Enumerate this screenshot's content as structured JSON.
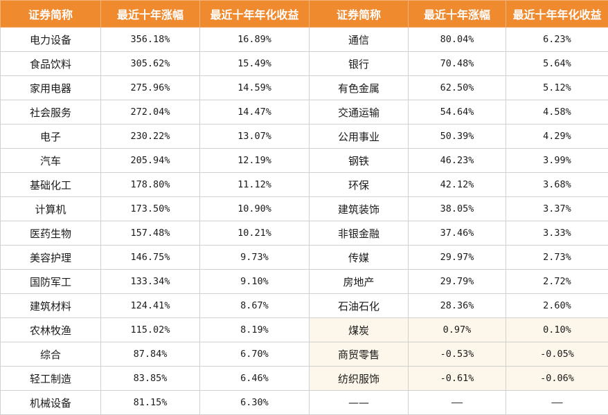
{
  "headers": [
    "证券简称",
    "最近十年涨幅",
    "最近十年年化收益",
    "证券简称",
    "最近十年涨幅",
    "最近十年年化收益"
  ],
  "colors": {
    "header_bg": "#ef8a2e",
    "header_text": "#ffffff",
    "highlight_bg": "#fdf6ea"
  },
  "rows": [
    {
      "left": {
        "name": "电力设备",
        "gain": "356.18%",
        "annual": "16.89%"
      },
      "right": {
        "name": "通信",
        "gain": "80.04%",
        "annual": "6.23%"
      }
    },
    {
      "left": {
        "name": "食品饮料",
        "gain": "305.62%",
        "annual": "15.49%"
      },
      "right": {
        "name": "银行",
        "gain": "70.48%",
        "annual": "5.64%"
      }
    },
    {
      "left": {
        "name": "家用电器",
        "gain": "275.96%",
        "annual": "14.59%"
      },
      "right": {
        "name": "有色金属",
        "gain": "62.50%",
        "annual": "5.12%"
      }
    },
    {
      "left": {
        "name": "社会服务",
        "gain": "272.04%",
        "annual": "14.47%"
      },
      "right": {
        "name": "交通运输",
        "gain": "54.64%",
        "annual": "4.58%"
      }
    },
    {
      "left": {
        "name": "电子",
        "gain": "230.22%",
        "annual": "13.07%"
      },
      "right": {
        "name": "公用事业",
        "gain": "50.39%",
        "annual": "4.29%"
      }
    },
    {
      "left": {
        "name": "汽车",
        "gain": "205.94%",
        "annual": "12.19%"
      },
      "right": {
        "name": "钢铁",
        "gain": "46.23%",
        "annual": "3.99%"
      }
    },
    {
      "left": {
        "name": "基础化工",
        "gain": "178.80%",
        "annual": "11.12%"
      },
      "right": {
        "name": "环保",
        "gain": "42.12%",
        "annual": "3.68%"
      }
    },
    {
      "left": {
        "name": "计算机",
        "gain": "173.50%",
        "annual": "10.90%"
      },
      "right": {
        "name": "建筑装饰",
        "gain": "38.05%",
        "annual": "3.37%"
      }
    },
    {
      "left": {
        "name": "医药生物",
        "gain": "157.48%",
        "annual": "10.21%"
      },
      "right": {
        "name": "非银金融",
        "gain": "37.46%",
        "annual": "3.33%"
      }
    },
    {
      "left": {
        "name": "美容护理",
        "gain": "146.75%",
        "annual": "9.73%"
      },
      "right": {
        "name": "传媒",
        "gain": "29.97%",
        "annual": "2.73%"
      }
    },
    {
      "left": {
        "name": "国防军工",
        "gain": "133.34%",
        "annual": "9.10%"
      },
      "right": {
        "name": "房地产",
        "gain": "29.79%",
        "annual": "2.72%"
      }
    },
    {
      "left": {
        "name": "建筑材料",
        "gain": "124.41%",
        "annual": "8.67%"
      },
      "right": {
        "name": "石油石化",
        "gain": "28.36%",
        "annual": "2.60%"
      }
    },
    {
      "left": {
        "name": "农林牧渔",
        "gain": "115.02%",
        "annual": "8.19%"
      },
      "right": {
        "name": "煤炭",
        "gain": "0.97%",
        "annual": "0.10%",
        "highlight": true
      }
    },
    {
      "left": {
        "name": "综合",
        "gain": "87.84%",
        "annual": "6.70%"
      },
      "right": {
        "name": "商贸零售",
        "gain": "-0.53%",
        "annual": "-0.05%",
        "highlight": true
      }
    },
    {
      "left": {
        "name": "轻工制造",
        "gain": "83.85%",
        "annual": "6.46%"
      },
      "right": {
        "name": "纺织服饰",
        "gain": "-0.61%",
        "annual": "-0.06%",
        "highlight": true
      }
    },
    {
      "left": {
        "name": "机械设备",
        "gain": "81.15%",
        "annual": "6.30%"
      },
      "right": {
        "name": "——",
        "gain": "——",
        "annual": "——"
      }
    }
  ]
}
